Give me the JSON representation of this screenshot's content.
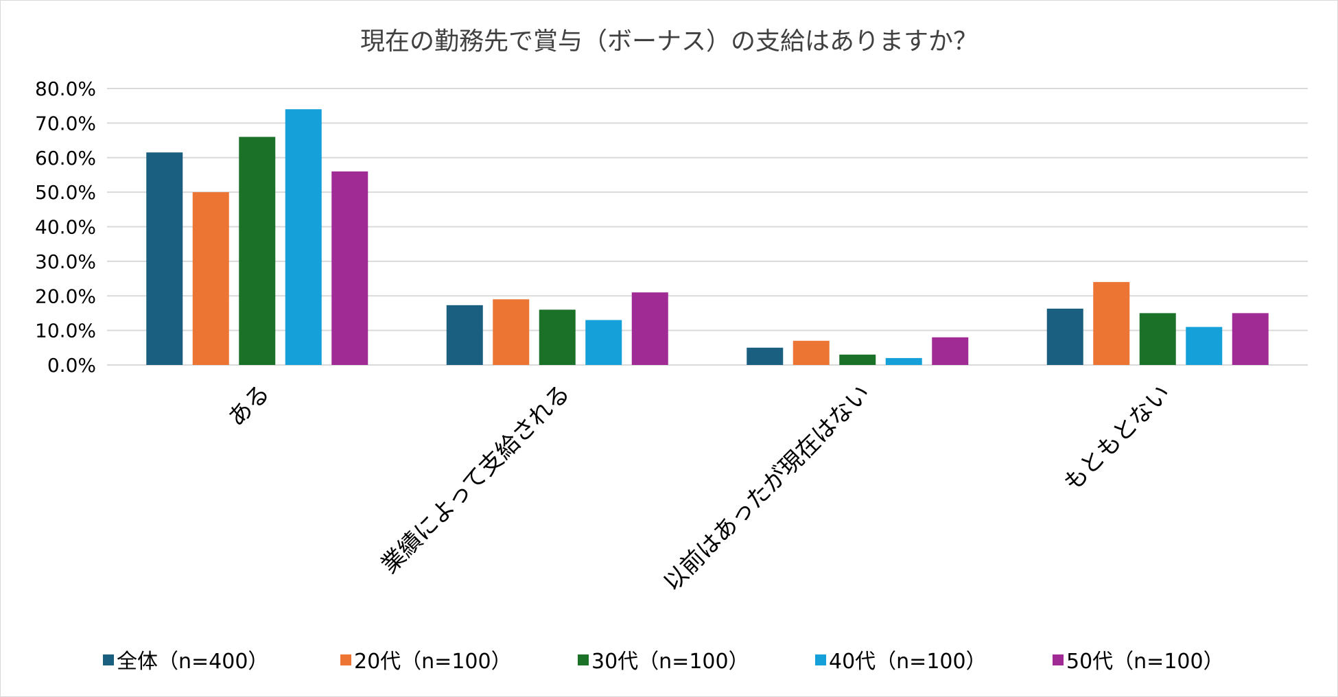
{
  "chart_data": {
    "type": "bar",
    "title": "現在の勤務先で賞与（ボーナス）の支給はありますか？",
    "xlabel": "",
    "ylabel": "",
    "categories": [
      "ある",
      "業績によって支給される",
      "以前はあったが現在はない",
      "もともとない"
    ],
    "yticks": [
      "0.0%",
      "10.0%",
      "20.0%",
      "30.0%",
      "40.0%",
      "50.0%",
      "60.0%",
      "70.0%",
      "80.0%"
    ],
    "ylim": [
      0,
      80
    ],
    "grid": true,
    "legend_position": "bottom",
    "series": [
      {
        "name": "全体（n=400）",
        "color": "#1a5f80",
        "values": [
          61.5,
          17.3,
          5.0,
          16.3
        ]
      },
      {
        "name": "20代（n=100）",
        "color": "#ec7534",
        "values": [
          50,
          19,
          7,
          24
        ]
      },
      {
        "name": "30代（n=100）",
        "color": "#1c7128",
        "values": [
          66,
          16,
          3,
          15
        ]
      },
      {
        "name": "40代（n=100）",
        "color": "#16a0d9",
        "values": [
          74,
          13,
          2,
          11
        ]
      },
      {
        "name": "50代（n=100）",
        "color": "#a02b94",
        "values": [
          56,
          21,
          8,
          15
        ]
      }
    ]
  }
}
